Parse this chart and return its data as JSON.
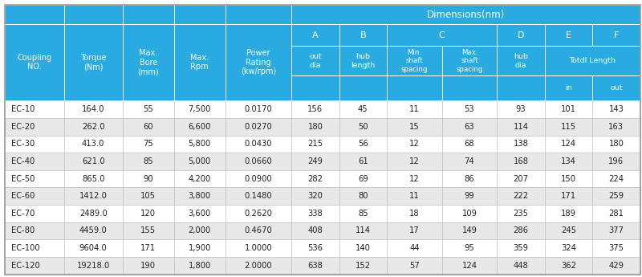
{
  "title": "Dimensions(nm)",
  "header_bg": "#29abe2",
  "header_text_color": "#ffffff",
  "row_bg_odd": "#ffffff",
  "row_bg_even": "#e8e8e8",
  "row_text_color": "#222222",
  "col_widths_rel": [
    8.0,
    8.0,
    7.0,
    7.0,
    9.0,
    6.5,
    6.5,
    7.5,
    7.5,
    6.5,
    6.5,
    6.5
  ],
  "rows": [
    [
      "EC-10",
      "164.0",
      "55",
      "7,500",
      "0.0170",
      "156",
      "45",
      "11",
      "53",
      "93",
      "101",
      "143"
    ],
    [
      "EC-20",
      "262.0",
      "60",
      "6,600",
      "0.0270",
      "180",
      "50",
      "15",
      "63",
      "114",
      "115",
      "163"
    ],
    [
      "EC-30",
      "413.0",
      "75",
      "5,800",
      "0.0430",
      "215",
      "56",
      "12",
      "68",
      "138",
      "124",
      "180"
    ],
    [
      "EC-40",
      "621.0",
      "85",
      "5,000",
      "0.0660",
      "249",
      "61",
      "12",
      "74",
      "168",
      "134",
      "196"
    ],
    [
      "EC-50",
      "865.0",
      "90",
      "4,200",
      "0.0900",
      "282",
      "69",
      "12",
      "86",
      "207",
      "150",
      "224"
    ],
    [
      "EC-60",
      "1412.0",
      "105",
      "3,800",
      "0.1480",
      "320",
      "80",
      "11",
      "99",
      "222",
      "171",
      "259"
    ],
    [
      "EC-70",
      "2489.0",
      "120",
      "3,600",
      "0.2620",
      "338",
      "85",
      "18",
      "109",
      "235",
      "189",
      "281"
    ],
    [
      "EC-80",
      "4459.0",
      "155",
      "2,000",
      "0.4670",
      "408",
      "114",
      "17",
      "149",
      "286",
      "245",
      "377"
    ],
    [
      "EC-100",
      "9604.0",
      "171",
      "1,900",
      "1.0000",
      "536",
      "140",
      "44",
      "95",
      "359",
      "324",
      "375"
    ],
    [
      "EC-120",
      "19218.0",
      "190",
      "1,800",
      "2.0000",
      "638",
      "152",
      "57",
      "124",
      "448",
      "362",
      "429"
    ]
  ],
  "figsize": [
    8.0,
    3.45
  ],
  "dpi": 100
}
